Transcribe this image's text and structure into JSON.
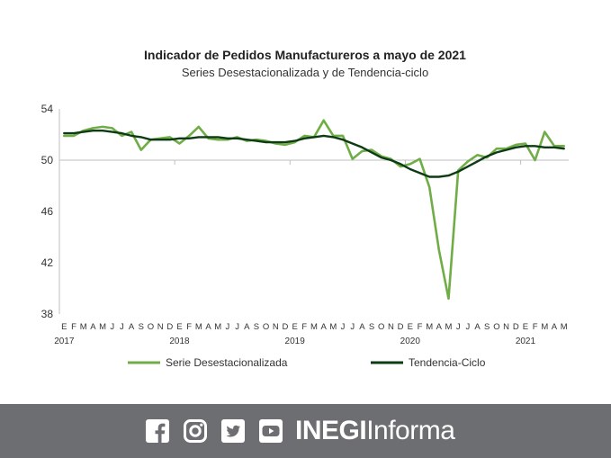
{
  "chart_data": {
    "type": "line",
    "title": "Indicador de Pedidos Manufactureros a mayo de 2021",
    "subtitle": "Series Desestacionalizada y de Tendencia-ciclo",
    "ylim": [
      38,
      54
    ],
    "yticks": [
      38,
      42,
      46,
      50,
      54
    ],
    "month_labels": [
      "E",
      "F",
      "M",
      "A",
      "M",
      "J",
      "J",
      "A",
      "S",
      "O",
      "N",
      "D",
      "E",
      "F",
      "M",
      "A",
      "M",
      "J",
      "J",
      "A",
      "S",
      "O",
      "N",
      "D",
      "E",
      "F",
      "M",
      "A",
      "M",
      "J",
      "J",
      "A",
      "S",
      "O",
      "N",
      "D",
      "E",
      "F",
      "M",
      "A",
      "M",
      "J",
      "J",
      "A",
      "S",
      "O",
      "N",
      "D",
      "E",
      "F",
      "M",
      "A",
      "M"
    ],
    "year_labels": [
      "2017",
      "2018",
      "2019",
      "2020",
      "2021"
    ],
    "grid": "none",
    "legend_position": "bottom",
    "series": [
      {
        "name": "Serie Desestacionalizada",
        "color": "#70ad47",
        "values": [
          51.9,
          51.9,
          52.3,
          52.5,
          52.6,
          52.5,
          51.9,
          52.2,
          50.8,
          51.6,
          51.7,
          51.8,
          51.3,
          51.9,
          52.6,
          51.7,
          51.6,
          51.6,
          51.8,
          51.5,
          51.6,
          51.5,
          51.3,
          51.2,
          51.4,
          51.9,
          51.8,
          53.1,
          51.9,
          51.9,
          50.1,
          50.7,
          50.8,
          50.3,
          50.1,
          49.5,
          49.7,
          50.1,
          47.9,
          43.0,
          39.2,
          49.2,
          49.9,
          50.4,
          50.2,
          50.9,
          50.9,
          51.2,
          51.3,
          50.0,
          52.2,
          51.1,
          51.1
        ]
      },
      {
        "name": "Tendencia-Ciclo",
        "color": "#0d3b14",
        "values": [
          52.1,
          52.1,
          52.2,
          52.3,
          52.3,
          52.2,
          52.1,
          51.9,
          51.8,
          51.6,
          51.6,
          51.6,
          51.7,
          51.7,
          51.8,
          51.8,
          51.8,
          51.7,
          51.7,
          51.6,
          51.5,
          51.4,
          51.4,
          51.4,
          51.5,
          51.7,
          51.8,
          51.9,
          51.8,
          51.6,
          51.3,
          51.0,
          50.6,
          50.2,
          50.0,
          49.7,
          49.3,
          49.0,
          48.7,
          48.7,
          48.8,
          49.1,
          49.5,
          49.9,
          50.3,
          50.6,
          50.8,
          51.0,
          51.1,
          51.1,
          51.0,
          51.0,
          50.9
        ]
      }
    ]
  },
  "footer": {
    "brand_bold": "INEGI",
    "brand_regular": "Informa",
    "icons": [
      "facebook-icon",
      "instagram-icon",
      "twitter-icon",
      "youtube-icon"
    ]
  }
}
